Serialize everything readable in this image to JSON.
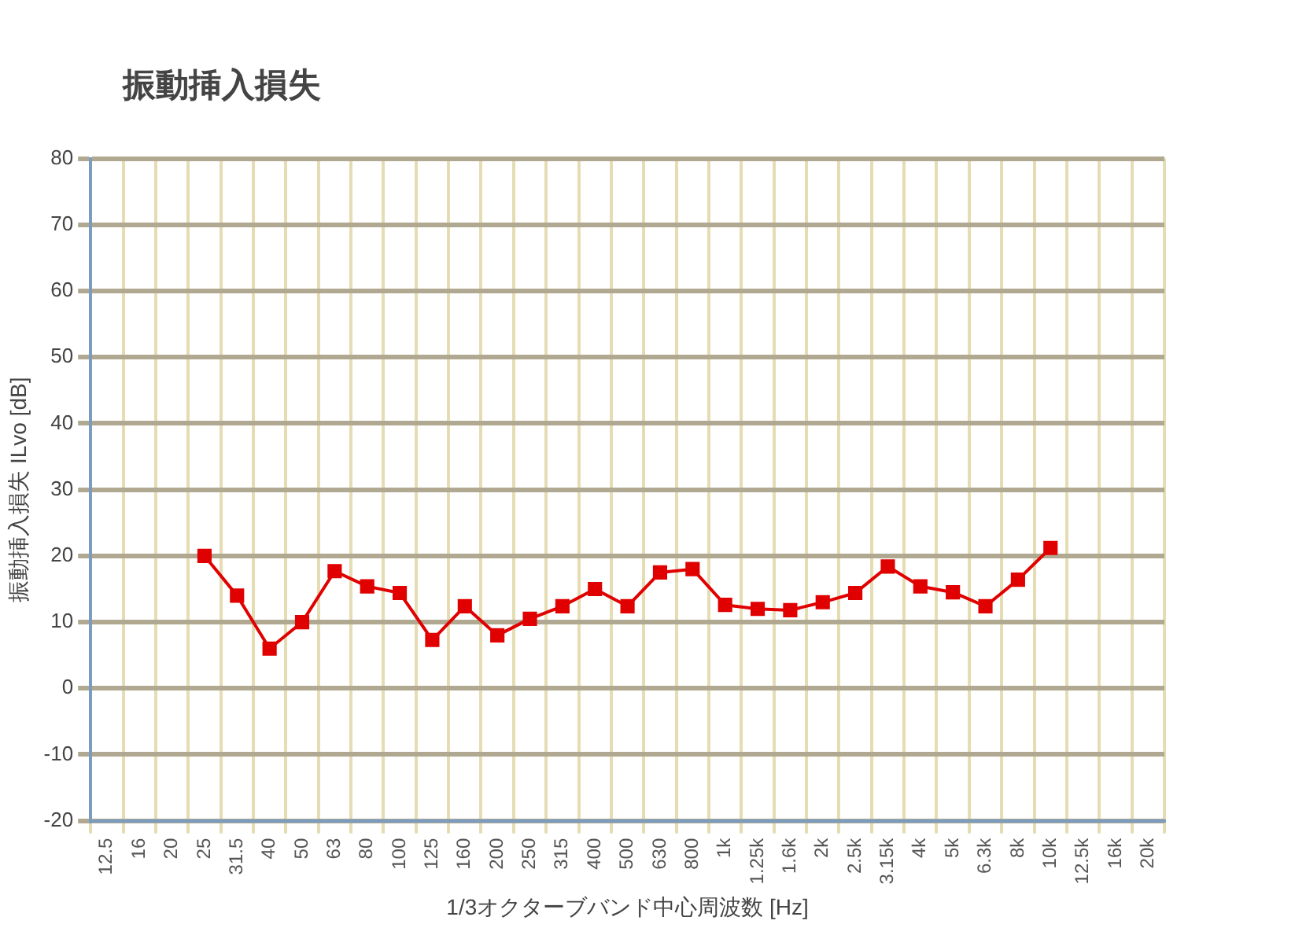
{
  "chart_data": {
    "type": "line",
    "title": "振動挿入損失",
    "xlabel": "1/3オクターブバンド中心周波数 [Hz]",
    "ylabel": "振動挿入損失 ILvo [dB]",
    "categories": [
      "12.5",
      "16",
      "20",
      "25",
      "31.5",
      "40",
      "50",
      "63",
      "80",
      "100",
      "125",
      "160",
      "200",
      "250",
      "315",
      "400",
      "500",
      "630",
      "800",
      "1k",
      "1.25k",
      "1.6k",
      "2k",
      "2.5k",
      "3.15k",
      "4k",
      "5k",
      "6.3k",
      "8k",
      "10k",
      "12.5k",
      "16k",
      "20k"
    ],
    "series": [
      {
        "color": "#e00000",
        "values": [
          null,
          null,
          null,
          20,
          14,
          6,
          10,
          17.7,
          15.4,
          14.4,
          7.3,
          12.4,
          8,
          10.5,
          12.4,
          15,
          12.4,
          17.5,
          18,
          12.6,
          12,
          11.8,
          13,
          14.4,
          18.4,
          15.4,
          14.5,
          12.4,
          16.4,
          21.2,
          null,
          null,
          null
        ]
      }
    ],
    "ylim": [
      -20,
      80
    ],
    "yticks": [
      -20,
      -10,
      0,
      10,
      20,
      30,
      40,
      50,
      60,
      70,
      80
    ],
    "grid": true,
    "legend": false,
    "marker": "square",
    "line_style": "solid"
  }
}
